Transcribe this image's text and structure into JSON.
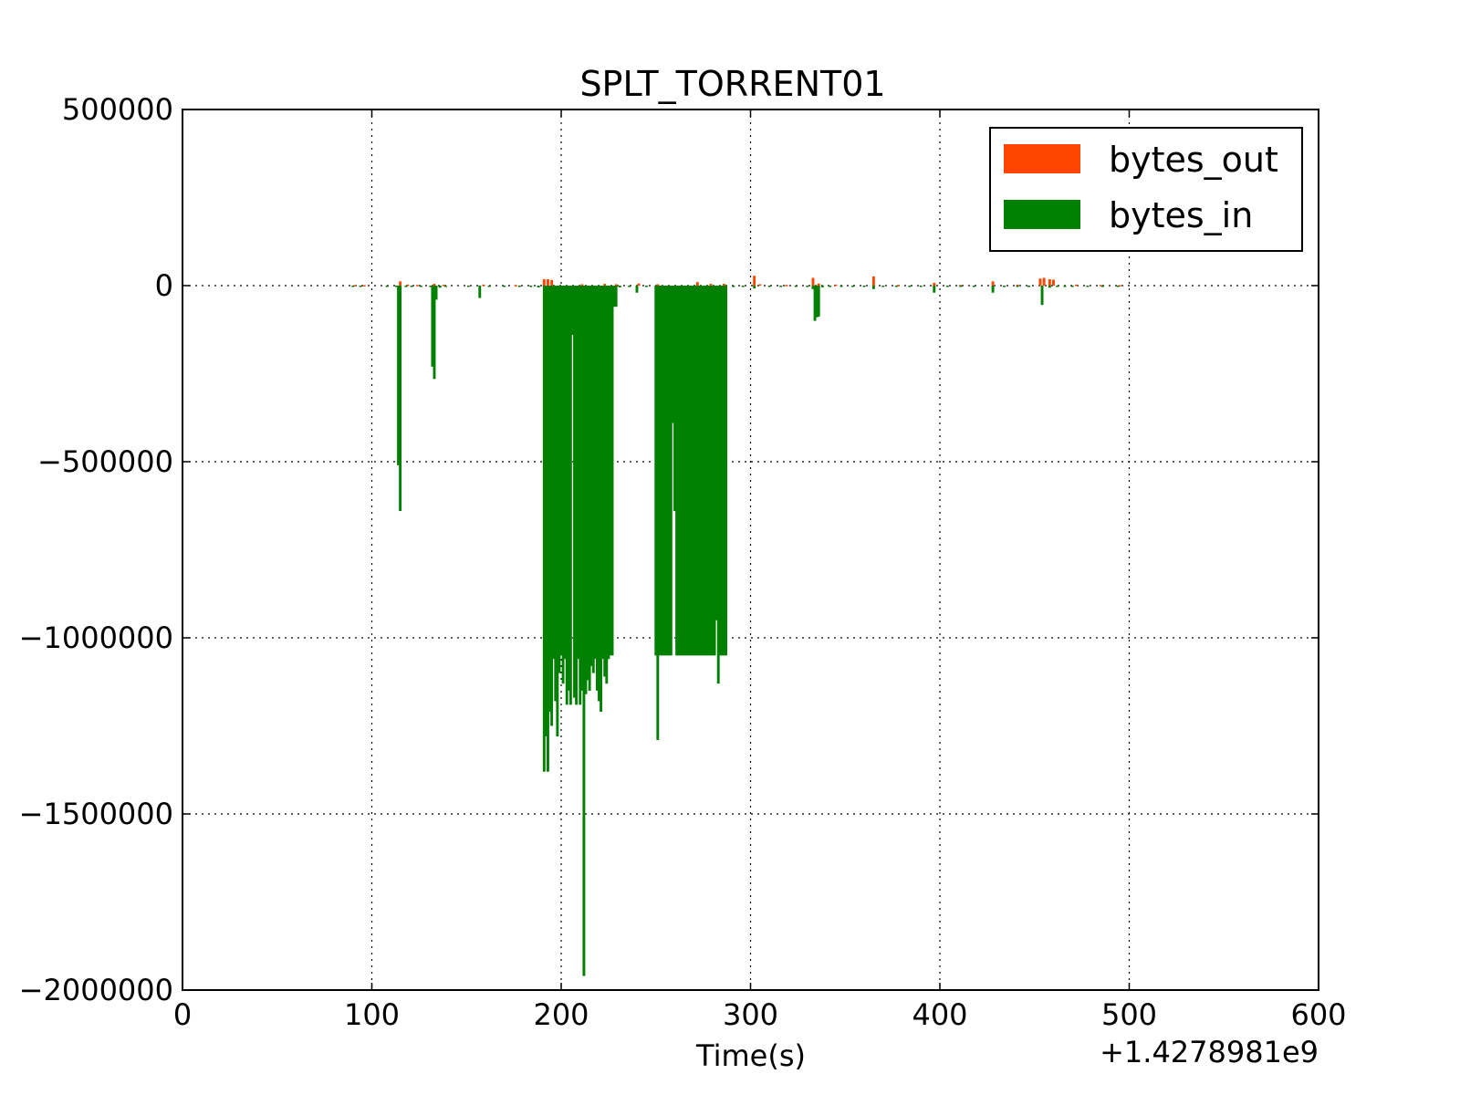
{
  "chart_data": {
    "type": "bar",
    "title": "SPLT_TORRENT01",
    "xlabel": "Time(s)",
    "ylabel": "",
    "x_offset_label": "+1.4278981e9",
    "xlim": [
      0,
      600
    ],
    "ylim": [
      -2000000,
      500000
    ],
    "x_ticks": [
      0,
      100,
      200,
      300,
      400,
      500,
      600
    ],
    "x_tick_labels": [
      "0",
      "100",
      "200",
      "300",
      "400",
      "500",
      "600"
    ],
    "y_ticks": [
      500000,
      0,
      -500000,
      -1000000,
      -1500000,
      -2000000
    ],
    "y_tick_labels": [
      "500000",
      "0",
      "−500000",
      "−1000000",
      "−1500000",
      "−2000000"
    ],
    "grid": true,
    "legend_position": "top-right",
    "series": [
      {
        "name": "bytes_out",
        "color": "#ff4500",
        "bar_width": 1.4,
        "points": [
          {
            "x": 91,
            "y": 1500
          },
          {
            "x": 96,
            "y": 1200
          },
          {
            "x": 115,
            "y": 12000
          },
          {
            "x": 119,
            "y": 3000
          },
          {
            "x": 124,
            "y": 2000
          },
          {
            "x": 133,
            "y": 5000
          },
          {
            "x": 138,
            "y": 2500
          },
          {
            "x": 159,
            "y": 3000
          },
          {
            "x": 176,
            "y": 1500
          },
          {
            "x": 191,
            "y": 18000
          },
          {
            "x": 193,
            "y": 18000
          },
          {
            "x": 195,
            "y": 16000
          },
          {
            "x": 211,
            "y": 4000
          },
          {
            "x": 223,
            "y": 5000
          },
          {
            "x": 229,
            "y": 4000
          },
          {
            "x": 241,
            "y": 6000
          },
          {
            "x": 251,
            "y": 4000
          },
          {
            "x": 272,
            "y": 10000
          },
          {
            "x": 279,
            "y": 5000
          },
          {
            "x": 286,
            "y": 5000
          },
          {
            "x": 302,
            "y": 28000
          },
          {
            "x": 305,
            "y": 4000
          },
          {
            "x": 319,
            "y": 2000
          },
          {
            "x": 333,
            "y": 22000
          },
          {
            "x": 336,
            "y": 6000
          },
          {
            "x": 345,
            "y": 3000
          },
          {
            "x": 365,
            "y": 26000
          },
          {
            "x": 378,
            "y": 2000
          },
          {
            "x": 397,
            "y": 8000
          },
          {
            "x": 411,
            "y": 2000
          },
          {
            "x": 428,
            "y": 12000
          },
          {
            "x": 441,
            "y": 3000
          },
          {
            "x": 453,
            "y": 20000
          },
          {
            "x": 455,
            "y": 22000
          },
          {
            "x": 458,
            "y": 18000
          },
          {
            "x": 460,
            "y": 17000
          },
          {
            "x": 472,
            "y": 3000
          },
          {
            "x": 485,
            "y": 2000
          },
          {
            "x": 495,
            "y": 1500
          }
        ]
      },
      {
        "name": "bytes_in",
        "color": "#008000",
        "bar_width": 1.4,
        "points": [
          {
            "x": 90,
            "y": -2500
          },
          {
            "x": 94,
            "y": -3000
          },
          {
            "x": 108,
            "y": -2500
          },
          {
            "x": 113,
            "y": -4000
          },
          {
            "x": 114,
            "y": -510000
          },
          {
            "x": 115,
            "y": -640000
          },
          {
            "x": 118,
            "y": -4000
          },
          {
            "x": 121,
            "y": -3500
          },
          {
            "x": 126,
            "y": -3000
          },
          {
            "x": 131,
            "y": -4000
          },
          {
            "x": 132,
            "y": -230000
          },
          {
            "x": 133,
            "y": -265000
          },
          {
            "x": 134,
            "y": -40000
          },
          {
            "x": 136,
            "y": -6000
          },
          {
            "x": 139,
            "y": -3000
          },
          {
            "x": 151,
            "y": -3000
          },
          {
            "x": 157,
            "y": -35000
          },
          {
            "x": 162,
            "y": -3000
          },
          {
            "x": 170,
            "y": -3000
          },
          {
            "x": 178,
            "y": -3000
          },
          {
            "x": 184,
            "y": -4000
          },
          {
            "x": 188,
            "y": -5000
          },
          {
            "x": 191,
            "y": -1380000
          },
          {
            "x": 192,
            "y": -1280000
          },
          {
            "x": 193,
            "y": -1380000
          },
          {
            "x": 194,
            "y": -1210000
          },
          {
            "x": 195,
            "y": -1250000
          },
          {
            "x": 196,
            "y": -1060000
          },
          {
            "x": 197,
            "y": -1180000
          },
          {
            "x": 198,
            "y": -1280000
          },
          {
            "x": 199,
            "y": -1100000
          },
          {
            "x": 200,
            "y": -1050000
          },
          {
            "x": 201,
            "y": -1130000
          },
          {
            "x": 202,
            "y": -1060000
          },
          {
            "x": 203,
            "y": -1190000
          },
          {
            "x": 204,
            "y": -1150000
          },
          {
            "x": 205,
            "y": -1190000
          },
          {
            "x": 206,
            "y": -140000
          },
          {
            "x": 207,
            "y": -1170000
          },
          {
            "x": 208,
            "y": -1190000
          },
          {
            "x": 209,
            "y": -1060000
          },
          {
            "x": 210,
            "y": -1190000
          },
          {
            "x": 211,
            "y": -1150000
          },
          {
            "x": 212,
            "y": -1960000
          },
          {
            "x": 213,
            "y": -1160000
          },
          {
            "x": 214,
            "y": -1120000
          },
          {
            "x": 215,
            "y": -1150000
          },
          {
            "x": 216,
            "y": -1080000
          },
          {
            "x": 217,
            "y": -1100000
          },
          {
            "x": 218,
            "y": -1060000
          },
          {
            "x": 219,
            "y": -1150000
          },
          {
            "x": 220,
            "y": -1180000
          },
          {
            "x": 221,
            "y": -1210000
          },
          {
            "x": 222,
            "y": -1060000
          },
          {
            "x": 223,
            "y": -1110000
          },
          {
            "x": 224,
            "y": -1130000
          },
          {
            "x": 225,
            "y": -1060000
          },
          {
            "x": 226,
            "y": -1050000
          },
          {
            "x": 227,
            "y": -1050000
          },
          {
            "x": 228,
            "y": -60000
          },
          {
            "x": 229,
            "y": -60000
          },
          {
            "x": 231,
            "y": -5000
          },
          {
            "x": 236,
            "y": -4000
          },
          {
            "x": 240,
            "y": -20000
          },
          {
            "x": 245,
            "y": -3000
          },
          {
            "x": 250,
            "y": -1050000
          },
          {
            "x": 251,
            "y": -1290000
          },
          {
            "x": 252,
            "y": -1050000
          },
          {
            "x": 253,
            "y": -1050000
          },
          {
            "x": 254,
            "y": -1050000
          },
          {
            "x": 255,
            "y": -1050000
          },
          {
            "x": 256,
            "y": -1050000
          },
          {
            "x": 257,
            "y": -1050000
          },
          {
            "x": 258,
            "y": -1050000
          },
          {
            "x": 259,
            "y": -390000
          },
          {
            "x": 260,
            "y": -640000
          },
          {
            "x": 261,
            "y": -1050000
          },
          {
            "x": 262,
            "y": -1050000
          },
          {
            "x": 263,
            "y": -1050000
          },
          {
            "x": 264,
            "y": -1050000
          },
          {
            "x": 265,
            "y": -1050000
          },
          {
            "x": 266,
            "y": -1050000
          },
          {
            "x": 267,
            "y": -1050000
          },
          {
            "x": 268,
            "y": -1050000
          },
          {
            "x": 269,
            "y": -1050000
          },
          {
            "x": 270,
            "y": -1050000
          },
          {
            "x": 271,
            "y": -1050000
          },
          {
            "x": 272,
            "y": -1050000
          },
          {
            "x": 273,
            "y": -1050000
          },
          {
            "x": 274,
            "y": -1050000
          },
          {
            "x": 275,
            "y": -1050000
          },
          {
            "x": 276,
            "y": -1050000
          },
          {
            "x": 277,
            "y": -1050000
          },
          {
            "x": 278,
            "y": -1050000
          },
          {
            "x": 279,
            "y": -1050000
          },
          {
            "x": 280,
            "y": -1050000
          },
          {
            "x": 281,
            "y": -1050000
          },
          {
            "x": 282,
            "y": -950000
          },
          {
            "x": 283,
            "y": -1130000
          },
          {
            "x": 284,
            "y": -1050000
          },
          {
            "x": 285,
            "y": -1050000
          },
          {
            "x": 286,
            "y": -1050000
          },
          {
            "x": 287,
            "y": -1050000
          },
          {
            "x": 291,
            "y": -4000
          },
          {
            "x": 296,
            "y": -3000
          },
          {
            "x": 302,
            "y": -8000
          },
          {
            "x": 310,
            "y": -3000
          },
          {
            "x": 316,
            "y": -2500
          },
          {
            "x": 324,
            "y": -3000
          },
          {
            "x": 330,
            "y": -4000
          },
          {
            "x": 333,
            "y": -10000
          },
          {
            "x": 334,
            "y": -100000
          },
          {
            "x": 335,
            "y": -90000
          },
          {
            "x": 336,
            "y": -88000
          },
          {
            "x": 338,
            "y": -5000
          },
          {
            "x": 342,
            "y": -3000
          },
          {
            "x": 348,
            "y": -3000
          },
          {
            "x": 354,
            "y": -3000
          },
          {
            "x": 360,
            "y": -3000
          },
          {
            "x": 365,
            "y": -10000
          },
          {
            "x": 370,
            "y": -3000
          },
          {
            "x": 377,
            "y": -2500
          },
          {
            "x": 384,
            "y": -3000
          },
          {
            "x": 390,
            "y": -3000
          },
          {
            "x": 397,
            "y": -20000
          },
          {
            "x": 404,
            "y": -3000
          },
          {
            "x": 411,
            "y": -3000
          },
          {
            "x": 418,
            "y": -2500
          },
          {
            "x": 428,
            "y": -20000
          },
          {
            "x": 434,
            "y": -3000
          },
          {
            "x": 441,
            "y": -3000
          },
          {
            "x": 447,
            "y": -3000
          },
          {
            "x": 454,
            "y": -55000
          },
          {
            "x": 458,
            "y": -6000
          },
          {
            "x": 462,
            "y": -3000
          },
          {
            "x": 466,
            "y": -3000
          },
          {
            "x": 470,
            "y": -3000
          },
          {
            "x": 478,
            "y": -2500
          },
          {
            "x": 486,
            "y": -2500
          },
          {
            "x": 494,
            "y": -2500
          }
        ]
      }
    ]
  }
}
